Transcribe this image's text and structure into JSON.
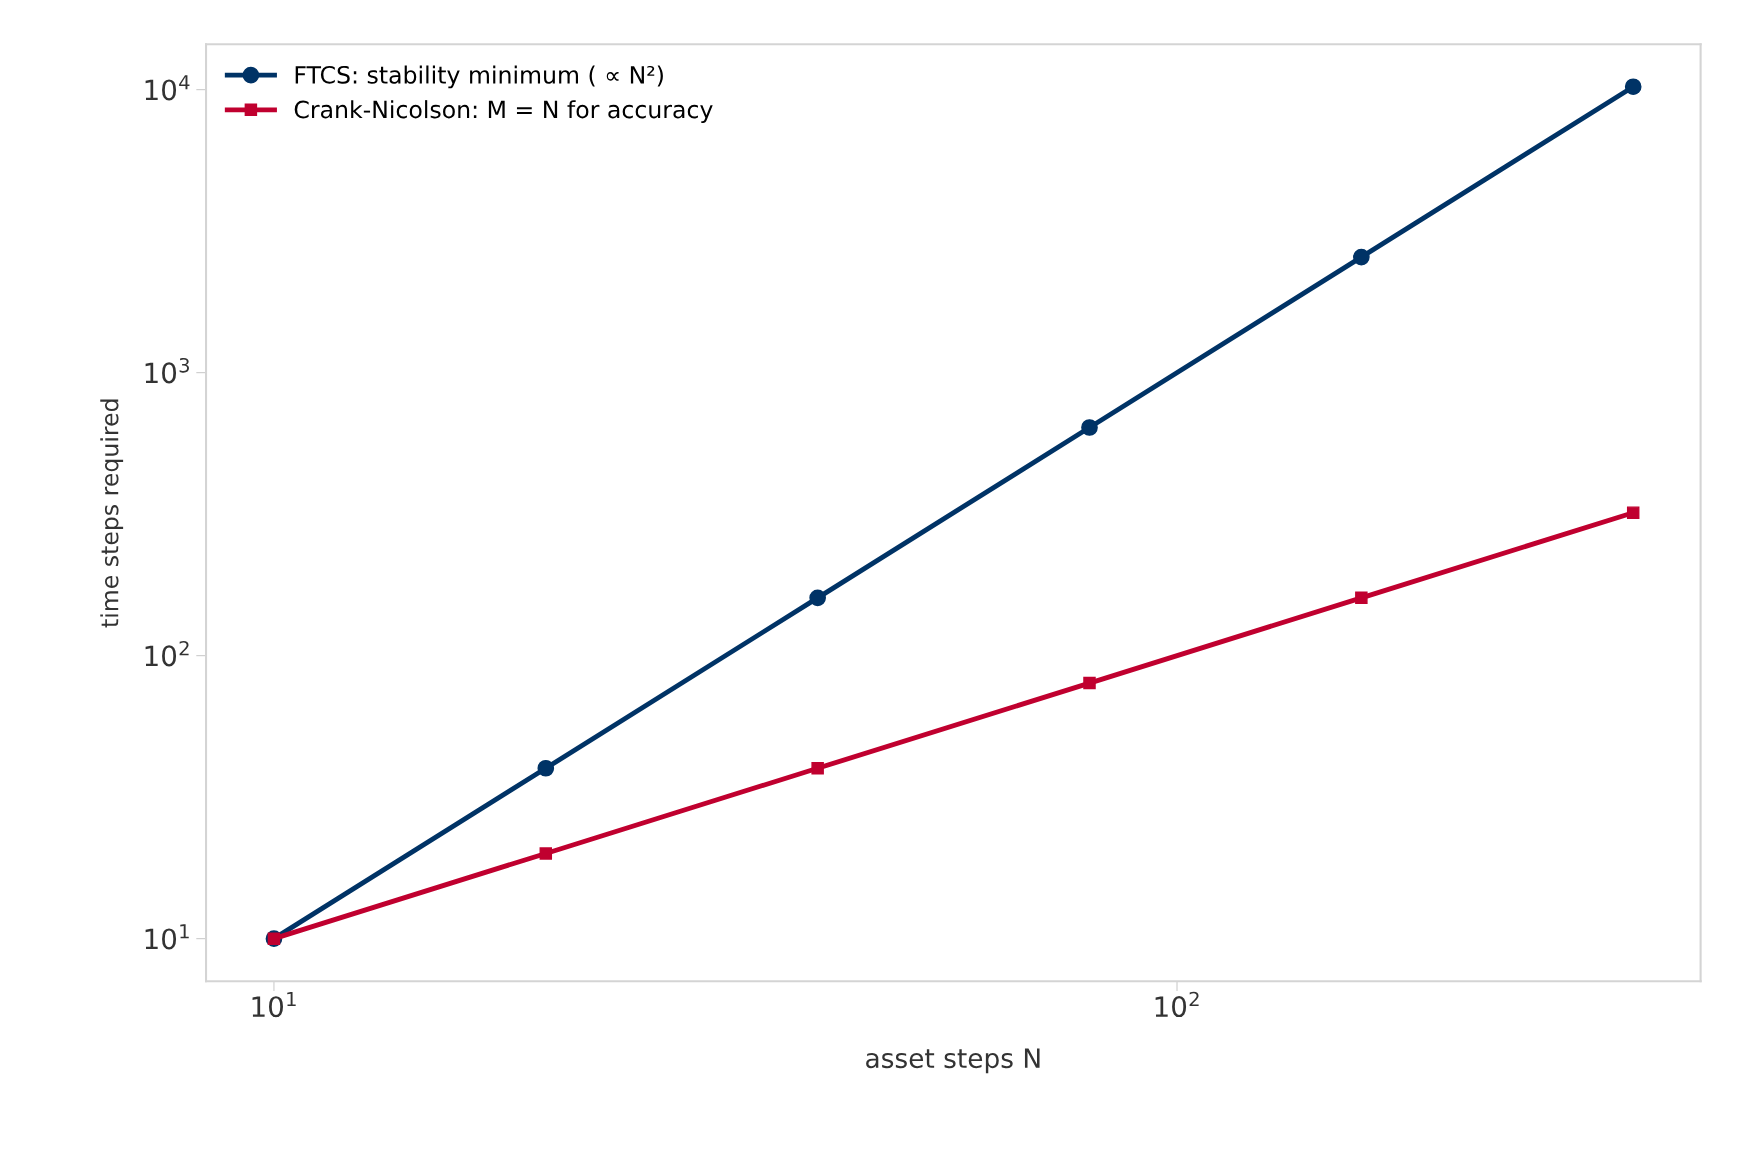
{
  "chart_data": {
    "type": "line",
    "xlabel": "asset steps N",
    "ylabel": "time steps required",
    "x": [
      10,
      20,
      40,
      80,
      160,
      320
    ],
    "series": [
      {
        "name": "FTCS: stability minimum ( ∝ N²)",
        "color": "#003366",
        "marker": "circle",
        "values": [
          10,
          40,
          160,
          640,
          2560,
          10240
        ]
      },
      {
        "name": "Crank-Nicolson: M = N for accuracy",
        "color": "#c0002f",
        "marker": "square",
        "values": [
          10,
          20,
          40,
          80,
          160,
          320
        ]
      }
    ],
    "log": "xy",
    "xlim": [
      8.41,
      380
    ],
    "ylim": [
      7.07,
      14470
    ],
    "xticks": [
      {
        "value": 10,
        "label": "10$^{1}$"
      },
      {
        "value": 100,
        "label": "10$^{2}$"
      }
    ],
    "yticks": [
      {
        "value": 10,
        "label": "10$^{1}$"
      },
      {
        "value": 100,
        "label": "10$^{2}$"
      },
      {
        "value": 1000,
        "label": "10$^{3}$"
      },
      {
        "value": 10000,
        "label": "10$^{4}$"
      }
    ],
    "grid": false,
    "legend": "top left",
    "line_style": "solid"
  }
}
